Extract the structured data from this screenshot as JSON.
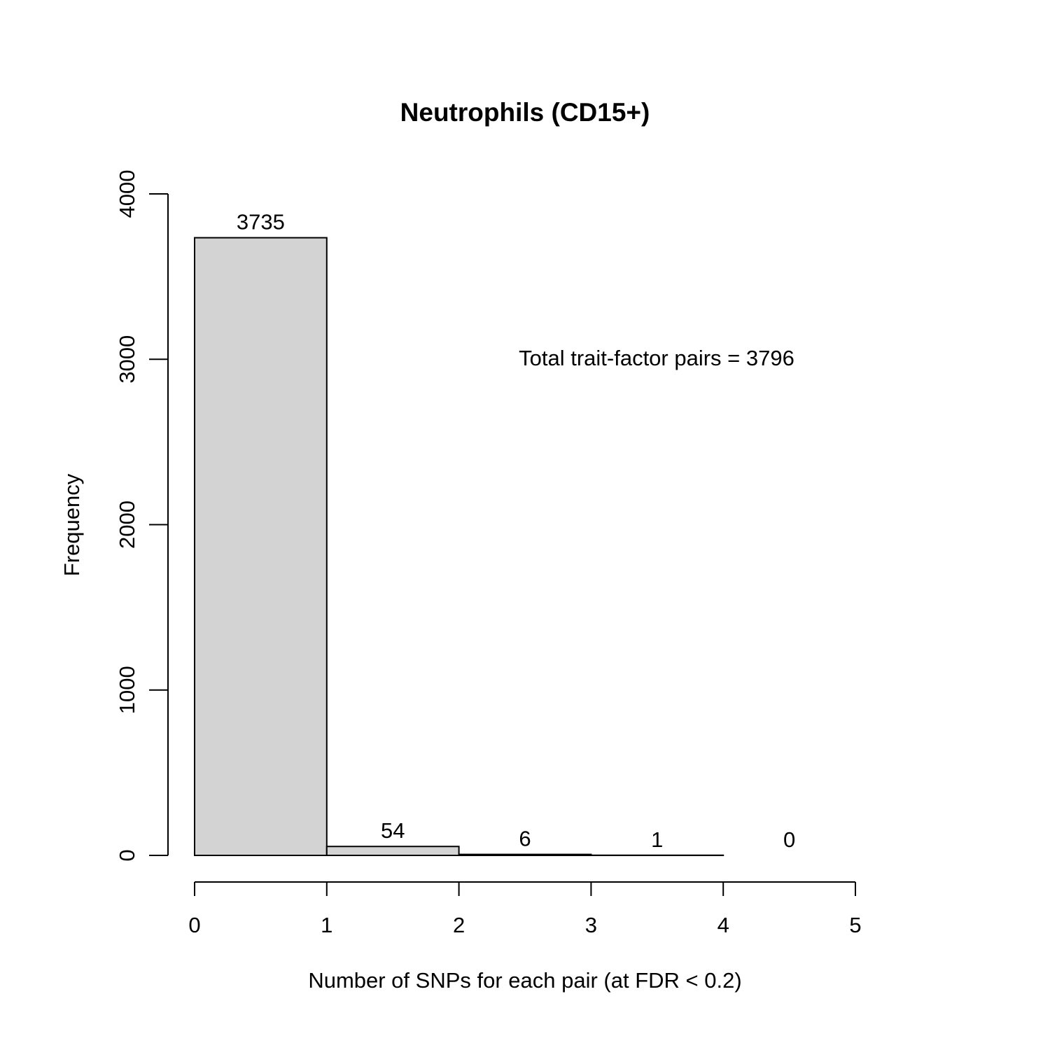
{
  "chart_data": {
    "type": "bar",
    "title": "Neutrophils (CD15+)",
    "xlabel": "Number of SNPs for each pair (at FDR < 0.2)",
    "ylabel": "Frequency",
    "bins": [
      {
        "start": 0,
        "end": 1,
        "value": 3735
      },
      {
        "start": 1,
        "end": 2,
        "value": 54
      },
      {
        "start": 2,
        "end": 3,
        "value": 6
      },
      {
        "start": 3,
        "end": 4,
        "value": 1
      },
      {
        "start": 4,
        "end": 5,
        "value": 0
      }
    ],
    "bar_labels": [
      "3735",
      "54",
      "6",
      "1",
      "0"
    ],
    "xlim": [
      0,
      5
    ],
    "ylim": [
      0,
      4000
    ],
    "x_ticks": [
      "0",
      "1",
      "2",
      "3",
      "4",
      "5"
    ],
    "y_ticks": [
      "0",
      "1000",
      "2000",
      "3000",
      "4000"
    ],
    "annotation": "Total trait-factor pairs = 3796",
    "grid": false,
    "legend": "none",
    "colors": {
      "bar_fill": "#d3d3d3",
      "bar_stroke": "#000000"
    }
  }
}
